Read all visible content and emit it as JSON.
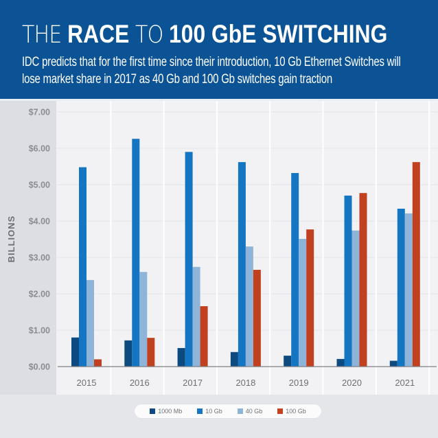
{
  "header": {
    "title_parts": [
      {
        "text": "THE ",
        "weight": "light"
      },
      {
        "text": "RACE",
        "weight": "bold"
      },
      {
        "text": " TO ",
        "weight": "light"
      },
      {
        "text": "100 GbE SWITCHING",
        "weight": "bold"
      }
    ],
    "subtitle": "IDC predicts that for the first time since their introduction, 10 Gb Ethernet Switches will lose market share in 2017 as 40 Gb and 100 Gb switches gain traction"
  },
  "chart_data": {
    "type": "bar",
    "title": "THE RACE TO 100 GbE SWITCHING",
    "subtitle": "IDC predicts that for the first time since their introduction, 10 Gb Ethernet Switches will lose market share in 2017 as 40 Gb and 100 Gb switches gain traction",
    "xlabel": "",
    "ylabel": "BILLIONS",
    "ylim": [
      0,
      7
    ],
    "yticks": [
      0,
      1,
      2,
      3,
      4,
      5,
      6,
      7
    ],
    "ytick_labels": [
      "$0.00",
      "$1.00",
      "$2.00",
      "$3.00",
      "$4.00",
      "$5.00",
      "$6.00",
      "$7.00"
    ],
    "grid": true,
    "legend_position": "bottom-center",
    "categories": [
      "2015",
      "2016",
      "2017",
      "2018",
      "2019",
      "2020",
      "2021"
    ],
    "series": [
      {
        "name": "1000 Mb",
        "color": "#0d4a80",
        "values": [
          0.8,
          0.72,
          0.51,
          0.4,
          0.3,
          0.21,
          0.16
        ]
      },
      {
        "name": "10 Gb",
        "color": "#1475c2",
        "values": [
          5.48,
          6.26,
          5.9,
          5.62,
          5.32,
          4.7,
          4.34
        ]
      },
      {
        "name": "40 Gb",
        "color": "#8fb4d9",
        "values": [
          2.38,
          2.6,
          2.74,
          3.3,
          3.51,
          3.74,
          4.21
        ]
      },
      {
        "name": "100 Gb",
        "color": "#c0401f",
        "values": [
          0.2,
          0.79,
          1.66,
          2.66,
          3.77,
          4.77,
          5.62
        ]
      }
    ]
  }
}
